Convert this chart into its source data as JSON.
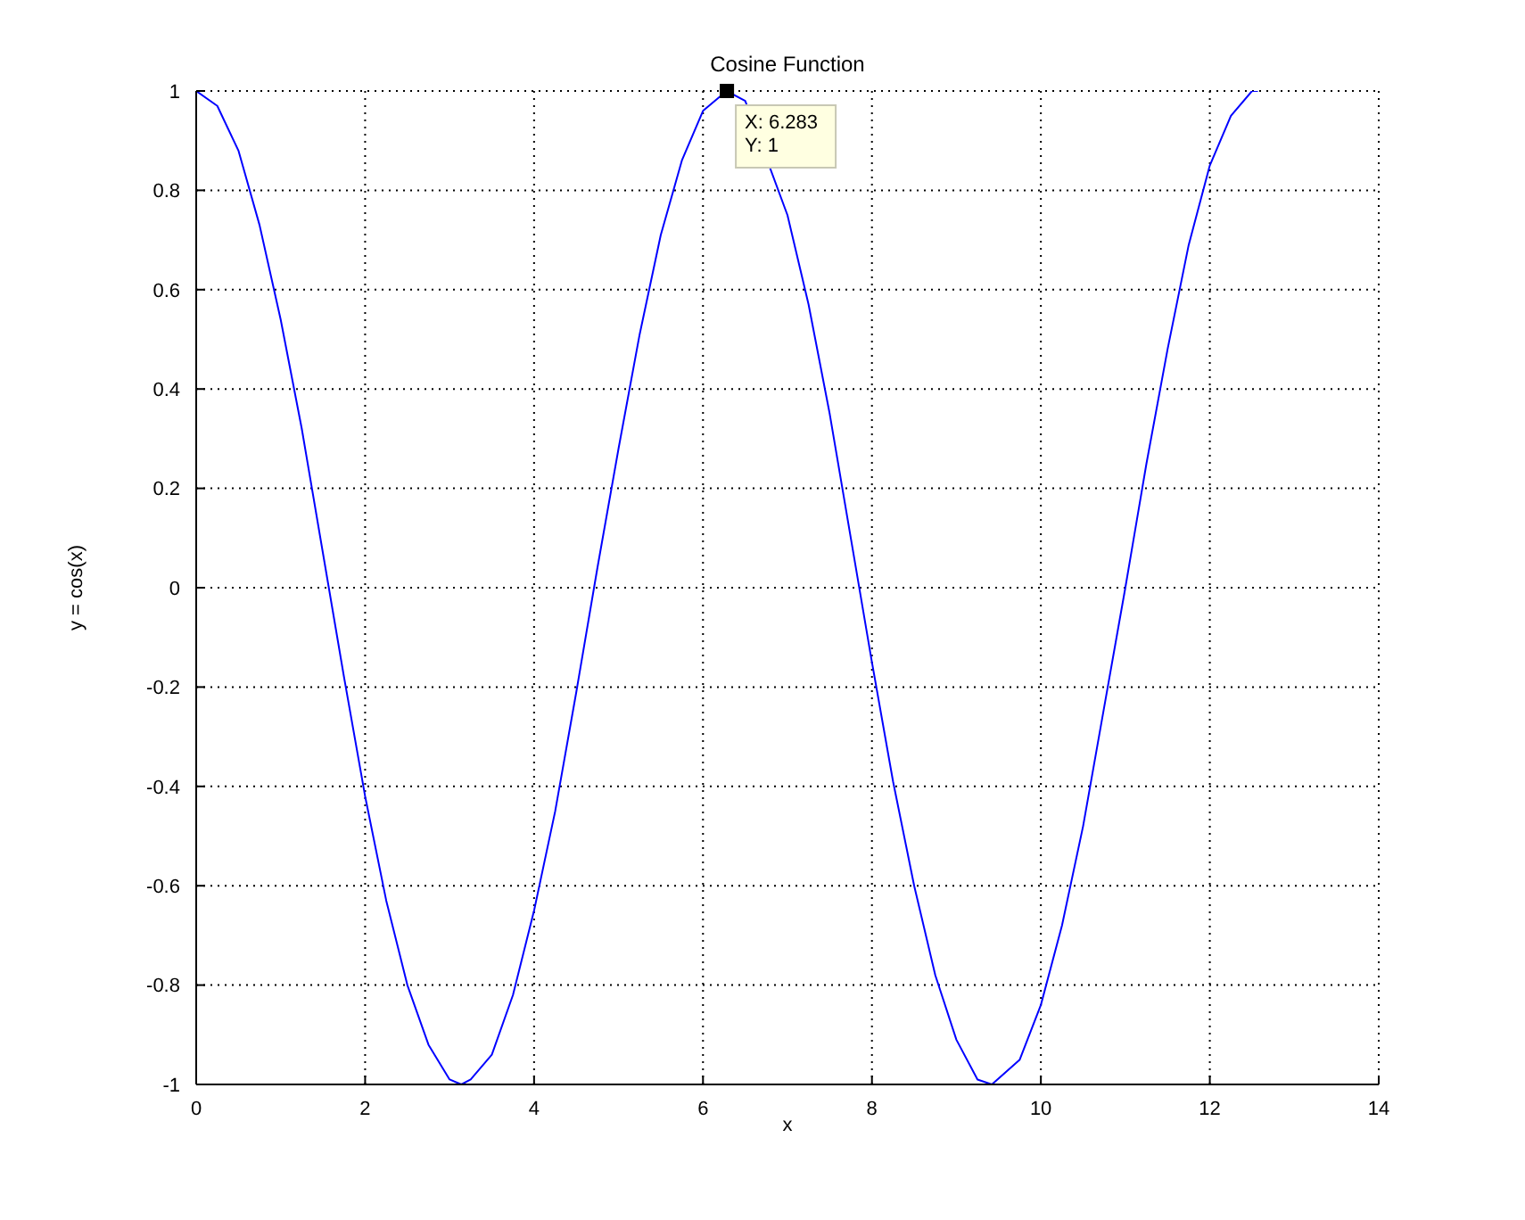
{
  "chart_data": {
    "type": "line",
    "title": "Cosine Function",
    "xlabel": "x",
    "ylabel": "y = cos(x)",
    "xlim": [
      0,
      14
    ],
    "xticks": [
      0,
      2,
      4,
      6,
      8,
      10,
      12,
      14
    ],
    "ylim": [
      -1,
      1
    ],
    "yticks": [
      -1,
      -0.8,
      -0.6,
      -0.4,
      -0.2,
      0,
      0.2,
      0.4,
      0.6,
      0.8,
      1
    ],
    "grid": true,
    "line_style": "solid",
    "marker": "none",
    "annotations": [
      {
        "text": "X: 6.283\nY: 1",
        "x": 6.283,
        "y": 1
      }
    ],
    "series": [
      {
        "color": "#0000ff",
        "x": [
          0,
          0.25,
          0.5,
          0.75,
          1,
          1.25,
          1.5,
          1.75,
          2,
          2.25,
          2.5,
          2.75,
          3,
          3.14,
          3.25,
          3.5,
          3.75,
          4,
          4.25,
          4.5,
          4.75,
          5,
          5.25,
          5.5,
          5.75,
          6,
          6.28,
          6.5,
          6.75,
          7,
          7.25,
          7.5,
          7.75,
          8,
          8.25,
          8.5,
          8.75,
          9,
          9.25,
          9.42,
          9.75,
          10,
          10.25,
          10.5,
          10.75,
          11,
          11.25,
          11.5,
          11.75,
          12,
          12.25,
          12.5,
          12.57
        ],
        "values": [
          1,
          0.97,
          0.88,
          0.73,
          0.54,
          0.32,
          0.07,
          -0.18,
          -0.42,
          -0.63,
          -0.8,
          -0.92,
          -0.99,
          -1,
          -0.99,
          -0.94,
          -0.82,
          -0.65,
          -0.45,
          -0.21,
          0.04,
          0.28,
          0.51,
          0.71,
          0.86,
          0.96,
          1,
          0.98,
          null,
          0.75,
          0.57,
          0.35,
          0.1,
          -0.15,
          -0.39,
          -0.6,
          -0.78,
          -0.91,
          -0.99,
          -1,
          -0.95,
          -0.84,
          -0.68,
          -0.48,
          -0.24,
          0,
          0.25,
          0.48,
          0.69,
          0.85,
          0.95,
          1,
          1
        ]
      }
    ]
  }
}
